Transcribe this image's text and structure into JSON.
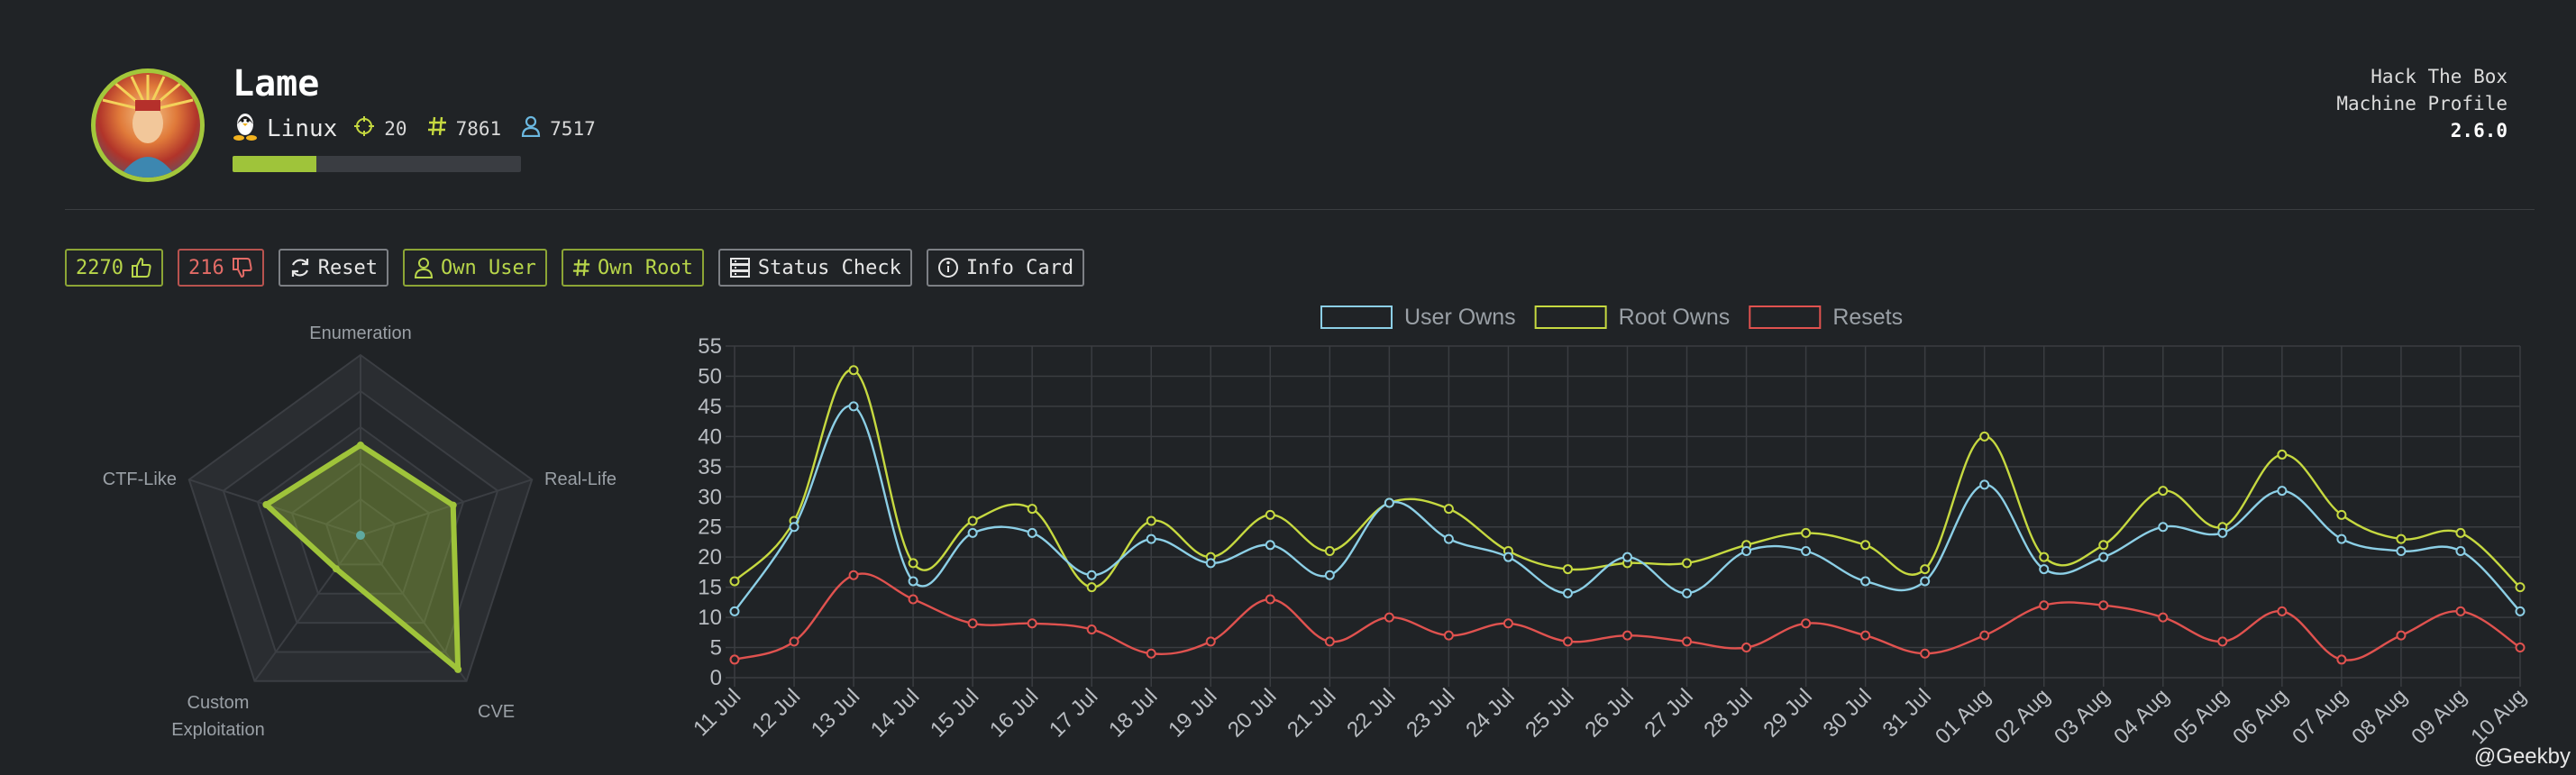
{
  "machine": {
    "name": "Lame",
    "os": "Linux",
    "points": "20",
    "root_owns": "7861",
    "user_owns": "7517",
    "progress": 0.29
  },
  "profile_info": {
    "line1": "Hack The Box",
    "line2": "Machine Profile",
    "version": "2.6.0"
  },
  "toolbar": {
    "likes": "2270",
    "dislikes": "216",
    "reset_label": "Reset",
    "own_user_label": "Own User",
    "own_root_label": "Own Root",
    "status_check_label": "Status Check",
    "info_card_label": "Info Card"
  },
  "radar": {
    "labels": [
      "Enumeration",
      "Real-Life",
      "CVE",
      "Custom Exploitation",
      "CTF-Like"
    ],
    "values": [
      5,
      5.4,
      9.2,
      2.3,
      5.5
    ],
    "max": 10,
    "color": "#9fc43a"
  },
  "chart_data": {
    "type": "line",
    "categories": [
      "11 Jul",
      "12 Jul",
      "13 Jul",
      "14 Jul",
      "15 Jul",
      "16 Jul",
      "17 Jul",
      "18 Jul",
      "19 Jul",
      "20 Jul",
      "21 Jul",
      "22 Jul",
      "23 Jul",
      "24 Jul",
      "25 Jul",
      "26 Jul",
      "27 Jul",
      "28 Jul",
      "29 Jul",
      "30 Jul",
      "31 Jul",
      "01 Aug",
      "02 Aug",
      "03 Aug",
      "04 Aug",
      "05 Aug",
      "06 Aug",
      "07 Aug",
      "08 Aug",
      "09 Aug",
      "10 Aug"
    ],
    "series": [
      {
        "name": "User Owns",
        "color": "#8ccfe6",
        "values": [
          11,
          25,
          45,
          16,
          24,
          24,
          17,
          23,
          19,
          22,
          17,
          29,
          23,
          20,
          14,
          20,
          14,
          21,
          21,
          16,
          16,
          32,
          18,
          20,
          25,
          24,
          31,
          23,
          21,
          21,
          11
        ]
      },
      {
        "name": "Root Owns",
        "color": "#c6d940",
        "values": [
          16,
          26,
          51,
          19,
          26,
          28,
          15,
          26,
          20,
          27,
          21,
          29,
          28,
          21,
          18,
          19,
          19,
          22,
          24,
          22,
          18,
          40,
          20,
          22,
          31,
          25,
          37,
          27,
          23,
          24,
          15
        ]
      },
      {
        "name": "Resets",
        "color": "#e0524f",
        "values": [
          3,
          6,
          17,
          13,
          9,
          9,
          8,
          4,
          6,
          13,
          6,
          10,
          7,
          9,
          6,
          7,
          6,
          5,
          9,
          7,
          4,
          7,
          12,
          12,
          10,
          6,
          11,
          3,
          7,
          11,
          5
        ]
      }
    ],
    "ylim": [
      0,
      55
    ],
    "yticks": [
      0,
      5,
      10,
      15,
      20,
      25,
      30,
      35,
      40,
      45,
      50,
      55
    ],
    "grid": true,
    "legend": "top"
  },
  "credit": "@Geekby"
}
